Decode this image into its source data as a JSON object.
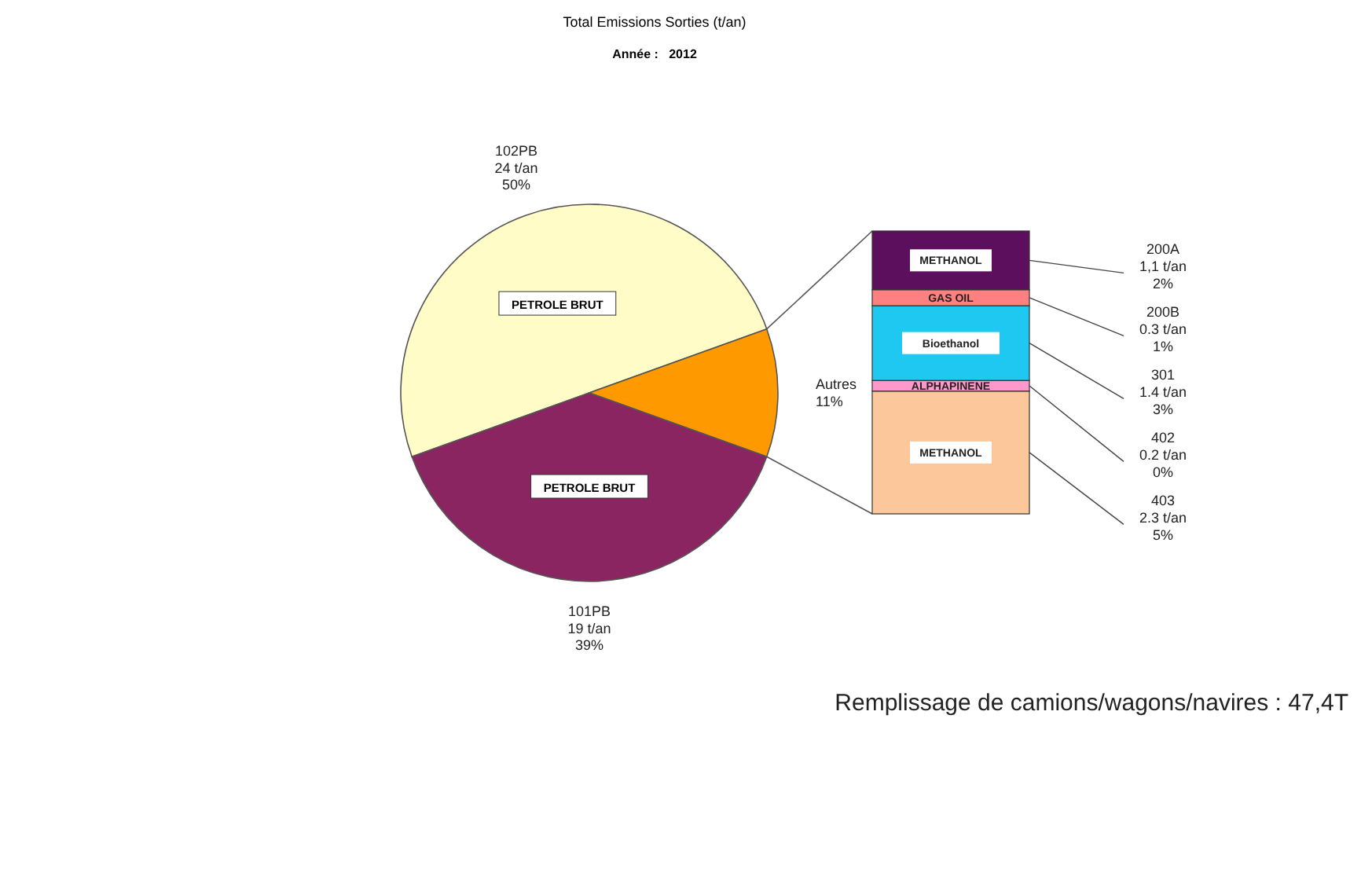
{
  "chart_data": [
    {
      "type": "pie",
      "title": "Total Emissions Sorties (t/an)",
      "subtitle": "Année :   2012",
      "categories": [
        "PETROLE BRUT",
        null,
        "PETROLE BRUT"
      ],
      "values": [
        50,
        11,
        39
      ],
      "colors": [
        "#fffcc8",
        "#ff9900",
        "#8b2561"
      ],
      "value_labels": [
        "102PB\n24 t/an\n50%",
        "Autres\n11%",
        "101PB\n19 t/an\n39%"
      ],
      "annotations": [
        "Remplissage de camions/wagons/navires : 47,4T"
      ]
    },
    {
      "type": "bar",
      "stacked": true,
      "categories": [
        null
      ],
      "series": [
        {
          "name": "METHANOL",
          "color": "#fcc89b",
          "values": [
            2.3
          ],
          "value_labels": [
            "403\n2.3 t/an\n5%"
          ]
        },
        {
          "name": "ALPHAPINENE",
          "color": "#ff99cc",
          "values": [
            0.2
          ],
          "value_labels": [
            "402\n0.2 t/an\n0%"
          ]
        },
        {
          "name": "Bioethanol",
          "color": "#1ec8f0",
          "values": [
            1.4
          ],
          "value_labels": [
            "301\n1.4 t/an\n3%"
          ]
        },
        {
          "name": "GAS OIL",
          "color": "#ff8080",
          "values": [
            0.3
          ],
          "value_labels": [
            "200B\n0.3 t/an\n1%"
          ]
        },
        {
          "name": "METHANOL",
          "color": "#5c0f5c",
          "values": [
            1.1
          ],
          "value_labels": [
            "200A\n1,1 t/an\n2%"
          ]
        }
      ]
    }
  ]
}
